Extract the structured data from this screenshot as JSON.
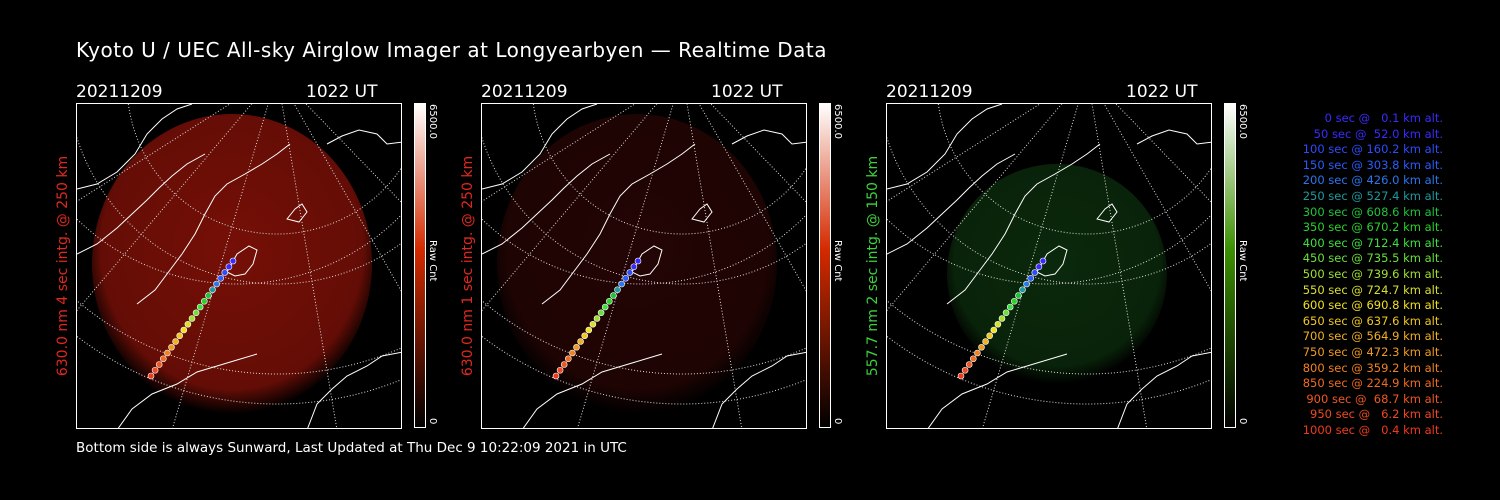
{
  "title": "Kyoto U / UEC All-sky Airglow Imager at Longyearbyen — Realtime Data",
  "footer": "Bottom side is always Sunward, Last Updated at Thu Dec  9 10:22:09 2021 in UTC",
  "panels": [
    {
      "date": "20211209",
      "time": "1022 UT",
      "ylabel": "630.0 nm 4 sec intg. @ 250 km",
      "label_color": "#e0281e",
      "colorbar_max": "6500.0",
      "colorbar_min": "0",
      "colorbar_unit": "Raw Cnt",
      "colorbar_color": "#d42a00",
      "glow_color": "#8a1208",
      "glow_intensity": 0.85
    },
    {
      "date": "20211209",
      "time": "1022 UT",
      "ylabel": "630.0 nm 1 sec intg. @ 250 km",
      "label_color": "#e0281e",
      "colorbar_max": "6500.0",
      "colorbar_min": "0",
      "colorbar_unit": "Raw Cnt",
      "colorbar_color": "#d42a00",
      "glow_color": "#3a0806",
      "glow_intensity": 0.6
    },
    {
      "date": "20211209",
      "time": "1022 UT",
      "ylabel": "557.7 nm 2 sec intg. @ 150 km",
      "label_color": "#3cd23c",
      "colorbar_max": "6500.0",
      "colorbar_min": "0",
      "colorbar_unit": "Raw Cnt",
      "colorbar_color": "#3c9000",
      "glow_color": "#0f3a10",
      "glow_intensity": 0.7
    }
  ],
  "trajectory": [
    {
      "text": "0 sec @   0.1 km alt.",
      "color": "#3a2aff"
    },
    {
      "text": "50 sec @  52.0 km alt.",
      "color": "#3a2aff"
    },
    {
      "text": "100 sec @ 160.2 km alt.",
      "color": "#2e4cff"
    },
    {
      "text": "150 sec @ 303.8 km alt.",
      "color": "#2a5cff"
    },
    {
      "text": "200 sec @ 426.0 km alt.",
      "color": "#2a78ee"
    },
    {
      "text": "250 sec @ 527.4 km alt.",
      "color": "#1e9aa0"
    },
    {
      "text": "300 sec @ 608.6 km alt.",
      "color": "#1ec43c"
    },
    {
      "text": "350 sec @ 670.2 km alt.",
      "color": "#2ad22a"
    },
    {
      "text": "400 sec @ 712.4 km alt.",
      "color": "#3ee040"
    },
    {
      "text": "450 sec @ 735.5 km alt.",
      "color": "#6ae03a"
    },
    {
      "text": "500 sec @ 739.6 km alt.",
      "color": "#a0e030"
    },
    {
      "text": "550 sec @ 724.7 km alt.",
      "color": "#d6e030"
    },
    {
      "text": "600 sec @ 690.8 km alt.",
      "color": "#f0e020"
    },
    {
      "text": "650 sec @ 637.6 km alt.",
      "color": "#f0c820"
    },
    {
      "text": "700 sec @ 564.9 km alt.",
      "color": "#f0b020"
    },
    {
      "text": "750 sec @ 472.3 km alt.",
      "color": "#f09a20"
    },
    {
      "text": "800 sec @ 359.2 km alt.",
      "color": "#f08220"
    },
    {
      "text": "850 sec @ 224.9 km alt.",
      "color": "#f06a20"
    },
    {
      "text": "900 sec @  68.7 km alt.",
      "color": "#f05820"
    },
    {
      "text": "950 sec @   6.2 km alt.",
      "color": "#f04820"
    },
    {
      "text": "1000 sec @   0.4 km alt.",
      "color": "#f03a1e"
    }
  ]
}
